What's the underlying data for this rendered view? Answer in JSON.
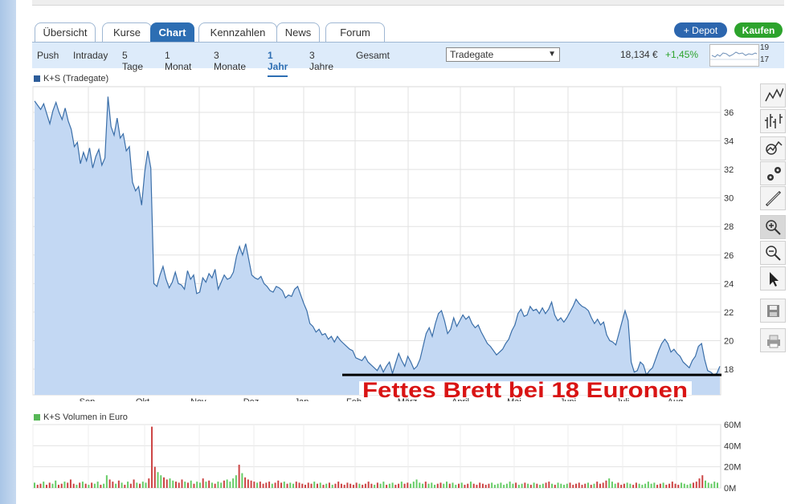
{
  "tabs": [
    "Übersicht",
    "Kurse",
    "Chart",
    "Kennzahlen",
    "News",
    "Forum"
  ],
  "active_tab": "Chart",
  "buttons": {
    "depot": "+ Depot",
    "kaufen": "Kaufen"
  },
  "ranges": [
    "Push",
    "Intraday",
    "5 Tage",
    "1 Monat",
    "3 Monate",
    "1 Jahr",
    "3 Jahre",
    "Gesamt"
  ],
  "active_range": "1 Jahr",
  "exchange": {
    "selected": "Tradegate"
  },
  "quote": {
    "price": "18,134 €",
    "change": "+1,45%"
  },
  "sparkline": {
    "high": "19",
    "low": "17"
  },
  "price_legend": "K+S (Tradegate)",
  "volume_legend": "K+S Volumen in Euro",
  "annotation": "Fettes Brett bei 18 Euronen",
  "colors": {
    "accent": "#2d6eb3",
    "price_line": "#3a6ea8",
    "area_fill": "#c3d8f3",
    "up_volume": "#66cc66",
    "down_volume": "#cc4444",
    "annotation": "#d91414",
    "kaufen": "#2ca32c"
  },
  "tools": [
    "line-chart-icon",
    "ohlc-chart-icon",
    "indicator-icon",
    "settings-icon",
    "draw-line-icon",
    "zoom-in-icon",
    "zoom-out-icon",
    "pointer-icon",
    "save-icon",
    "print-icon"
  ],
  "chart_data": [
    {
      "type": "area",
      "series": [
        {
          "name": "K+S (Tradegate)",
          "values": [
            36.8,
            36.5,
            36.2,
            36.6,
            35.9,
            35.2,
            36.1,
            36.7,
            36.0,
            35.5,
            36.3,
            35.4,
            34.8,
            33.6,
            33.9,
            32.4,
            33.2,
            32.6,
            33.5,
            32.1,
            32.9,
            33.4,
            32.3,
            32.8,
            37.1,
            35.0,
            34.4,
            35.6,
            34.2,
            34.5,
            33.3,
            33.6,
            31.1,
            30.5,
            30.8,
            29.5,
            31.8,
            33.3,
            32.1,
            24.0,
            23.8,
            24.6,
            25.2,
            24.3,
            23.7,
            24.1,
            24.8,
            24.0,
            23.9,
            23.6,
            24.9,
            24.3,
            24.6,
            23.3,
            23.4,
            24.4,
            24.1,
            24.7,
            24.4,
            25.0,
            23.6,
            24.1,
            24.6,
            24.3,
            24.4,
            24.8,
            25.9,
            26.6,
            26.0,
            26.8,
            25.7,
            24.6,
            24.4,
            24.3,
            24.5,
            24.0,
            23.8,
            23.5,
            23.4,
            23.8,
            23.7,
            23.5,
            23.0,
            23.2,
            23.1,
            23.6,
            23.8,
            23.2,
            22.6,
            22.1,
            21.2,
            21.0,
            20.6,
            20.8,
            20.4,
            20.5,
            20.1,
            20.3,
            19.9,
            20.3,
            20.0,
            19.8,
            19.6,
            19.4,
            19.3,
            18.8,
            18.7,
            18.6,
            18.9,
            18.5,
            18.3,
            18.1,
            17.9,
            18.3,
            17.8,
            18.2,
            18.5,
            17.7,
            18.4,
            19.1,
            18.6,
            18.2,
            18.9,
            18.5,
            18.0,
            18.2,
            18.7,
            19.6,
            20.5,
            20.9,
            20.3,
            21.2,
            21.9,
            22.1,
            21.4,
            20.5,
            20.8,
            21.6,
            21.0,
            21.4,
            21.8,
            21.5,
            21.7,
            21.2,
            20.9,
            21.1,
            20.6,
            20.2,
            19.8,
            19.6,
            19.3,
            19.0,
            19.2,
            19.4,
            19.8,
            20.1,
            20.7,
            21.1,
            21.9,
            22.2,
            21.7,
            21.8,
            22.4,
            22.1,
            22.2,
            21.9,
            22.3,
            21.9,
            22.2,
            22.7,
            21.8,
            21.4,
            21.6,
            21.3,
            21.6,
            22.0,
            22.4,
            22.9,
            22.6,
            22.4,
            22.3,
            22.1,
            21.6,
            21.2,
            21.5,
            21.1,
            21.3,
            20.4,
            20.0,
            19.9,
            19.7,
            20.5,
            21.3,
            22.1,
            21.4,
            18.5,
            17.8,
            17.9,
            18.5,
            18.3,
            17.6,
            17.9,
            18.1,
            18.7,
            19.3,
            19.8,
            20.1,
            19.8,
            19.2,
            19.4,
            19.1,
            18.9,
            18.5,
            18.3,
            18.1,
            18.6,
            18.9,
            19.6,
            19.8,
            18.7,
            17.9,
            17.8,
            17.6,
            17.7,
            18.2
          ]
        }
      ],
      "x_tick_labels": [
        "Sep.",
        "Okt.",
        "Nov.",
        "Dez.",
        "Jan.",
        "Feb.",
        "März",
        "April",
        "Mai",
        "Juni",
        "Juli",
        "Aug."
      ],
      "y_tick_labels": [
        "18",
        "20",
        "22",
        "24",
        "26",
        "28",
        "30",
        "32",
        "34",
        "36"
      ],
      "ylim": [
        16.2,
        37.8
      ],
      "reference_level": 17.6,
      "grid": true,
      "legend_position": "top-left"
    },
    {
      "type": "bar",
      "series": [
        {
          "name": "K+S Volumen in Euro",
          "values": [
            5,
            3,
            4,
            6,
            3,
            5,
            4,
            7,
            3,
            4,
            6,
            5,
            8,
            4,
            3,
            5,
            6,
            4,
            3,
            5,
            4,
            6,
            3,
            4,
            12,
            8,
            6,
            4,
            7,
            5,
            3,
            6,
            4,
            8,
            5,
            4,
            6,
            5,
            9,
            58,
            20,
            15,
            12,
            10,
            8,
            9,
            7,
            6,
            5,
            8,
            6,
            5,
            7,
            4,
            6,
            5,
            9,
            6,
            7,
            5,
            4,
            6,
            5,
            7,
            8,
            6,
            9,
            12,
            22,
            14,
            10,
            8,
            7,
            6,
            5,
            6,
            4,
            5,
            6,
            4,
            5,
            7,
            5,
            6,
            4,
            5,
            4,
            6,
            5,
            4,
            3,
            5,
            4,
            6,
            4,
            5,
            3,
            4,
            5,
            3,
            4,
            6,
            4,
            3,
            5,
            4,
            3,
            5,
            4,
            3,
            4,
            6,
            4,
            3,
            5,
            4,
            6,
            3,
            4,
            5,
            3,
            4,
            6,
            4,
            5,
            4,
            6,
            8,
            5,
            4,
            6,
            4,
            5,
            3,
            4,
            5,
            4,
            6,
            4,
            5,
            3,
            4,
            5,
            3,
            4,
            6,
            4,
            3,
            5,
            4,
            3,
            4,
            5,
            3,
            4,
            5,
            3,
            4,
            6,
            4,
            5,
            3,
            4,
            5,
            4,
            3,
            5,
            4,
            3,
            4,
            5,
            6,
            4,
            3,
            5,
            4,
            3,
            4,
            5,
            3,
            4,
            5,
            3,
            4,
            5,
            3,
            4,
            6,
            4,
            5,
            7,
            9,
            6,
            4,
            5,
            3,
            4,
            5,
            4,
            3,
            5,
            4,
            3,
            4,
            6,
            4,
            5,
            3,
            4,
            5,
            3,
            4,
            6,
            4,
            3,
            5,
            4,
            3,
            4,
            5,
            6,
            9,
            12,
            7,
            5,
            4,
            6,
            5
          ]
        }
      ],
      "y_tick_labels": [
        "0M",
        "20M",
        "40M",
        "60M"
      ],
      "ylim": [
        0,
        60
      ],
      "grid": true,
      "legend_position": "top-left"
    }
  ]
}
